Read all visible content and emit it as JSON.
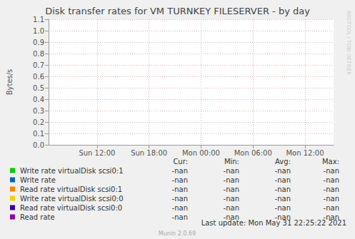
{
  "chart_data": {
    "type": "line",
    "title": "Disk transfer rates for VM TURNKEY FILESERVER - by day",
    "y_label": "Bytes/s",
    "x": [],
    "series": [
      {
        "name": "Write rate virtualDisk scsi0:1",
        "color": "#00cc00",
        "values": [],
        "stats": [
          "-nan",
          "-nan",
          "-nan",
          "-nan"
        ]
      },
      {
        "name": "Write rate",
        "color": "#0066b3",
        "values": [],
        "stats": [
          "-nan",
          "-nan",
          "-nan",
          "-nan"
        ]
      },
      {
        "name": "Read rate virtualDisk scsi0:1",
        "color": "#ff8000",
        "values": [],
        "stats": [
          "-nan",
          "-nan",
          "-nan",
          "-nan"
        ]
      },
      {
        "name": "Write rate virtualDisk scsi0:0",
        "color": "#ffcc00",
        "values": [],
        "stats": [
          "-nan",
          "-nan",
          "-nan",
          "-nan"
        ]
      },
      {
        "name": "Read rate virtualDisk scsi0:0",
        "color": "#330099",
        "values": [],
        "stats": [
          "-nan",
          "-nan",
          "-nan",
          "-nan"
        ]
      },
      {
        "name": "Read rate",
        "color": "#990099",
        "values": [],
        "stats": [
          "-nan",
          "-nan",
          "-nan",
          "-nan"
        ]
      }
    ],
    "stats_header": [
      "Cur:",
      "Min:",
      "Avg:",
      "Max:"
    ],
    "xlim": [
      6.4,
      39.3
    ],
    "xticks": [
      {
        "value": 12,
        "label": "Sun 12:00"
      },
      {
        "value": 18,
        "label": "Sun 18:00"
      },
      {
        "value": 24,
        "label": "Mon 00:00"
      },
      {
        "value": 30,
        "label": "Mon 06:00"
      },
      {
        "value": 36,
        "label": "Mon 12:00"
      }
    ],
    "ylim": [
      0,
      1.1
    ],
    "yticks": [
      {
        "value": 0,
        "label": "0.0"
      },
      0.1,
      0.2,
      0.3,
      0.4,
      0.5,
      0.6,
      0.7,
      0.8,
      0.9,
      {
        "value": 1,
        "label": "1.0"
      },
      1.1
    ],
    "grid": true,
    "annotations": [
      "Last update: Mon May 31 22:25:22 2021",
      "Munin 2.0.69",
      "RRDTOOL / TOBI OETIKER"
    ]
  }
}
